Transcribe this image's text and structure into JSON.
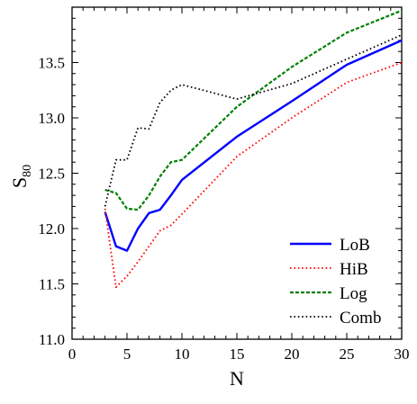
{
  "chart_data": {
    "type": "line",
    "xlabel": "N",
    "ylabel_main": "S",
    "ylabel_sub": "80",
    "xlim": [
      0,
      30
    ],
    "ylim": [
      11.0,
      14.0
    ],
    "xticks": [
      0,
      5,
      10,
      15,
      20,
      25,
      30
    ],
    "yticks": [
      11.0,
      11.5,
      12.0,
      12.5,
      13.0,
      13.5
    ],
    "ytick_labels": [
      "11.0",
      "11.5",
      "12.0",
      "12.5",
      "13.0",
      "13.5"
    ],
    "grid": false,
    "legend_position": "bottom-right",
    "series": [
      {
        "name": "LoB",
        "color": "#0000ff",
        "dash": "solid",
        "x": [
          3,
          4,
          5,
          6,
          7,
          8,
          9,
          10,
          15,
          20,
          25,
          30
        ],
        "y": [
          12.15,
          11.84,
          11.8,
          12.0,
          12.14,
          12.17,
          12.3,
          12.44,
          12.83,
          13.15,
          13.48,
          13.7
        ]
      },
      {
        "name": "HiB",
        "color": "#ff0000",
        "dash": "dotted",
        "x": [
          3,
          4,
          5,
          6,
          7,
          8,
          9,
          10,
          15,
          20,
          25,
          30
        ],
        "y": [
          12.18,
          11.47,
          11.57,
          11.7,
          11.84,
          11.98,
          12.03,
          12.13,
          12.65,
          13.0,
          13.32,
          13.5
        ]
      },
      {
        "name": "Log",
        "color": "#008000",
        "dash": "dashed",
        "x": [
          3,
          4,
          5,
          6,
          7,
          8,
          9,
          10,
          15,
          20,
          25,
          30
        ],
        "y": [
          12.35,
          12.32,
          12.18,
          12.17,
          12.3,
          12.47,
          12.6,
          12.62,
          13.1,
          13.46,
          13.77,
          13.97
        ]
      },
      {
        "name": "Comb",
        "color": "#000000",
        "dash": "dotted",
        "x": [
          3,
          4,
          5,
          6,
          7,
          8,
          9,
          10,
          15,
          20,
          25,
          30
        ],
        "y": [
          12.2,
          12.62,
          12.62,
          12.91,
          12.9,
          13.14,
          13.25,
          13.3,
          13.17,
          13.31,
          13.53,
          13.75
        ]
      }
    ]
  }
}
